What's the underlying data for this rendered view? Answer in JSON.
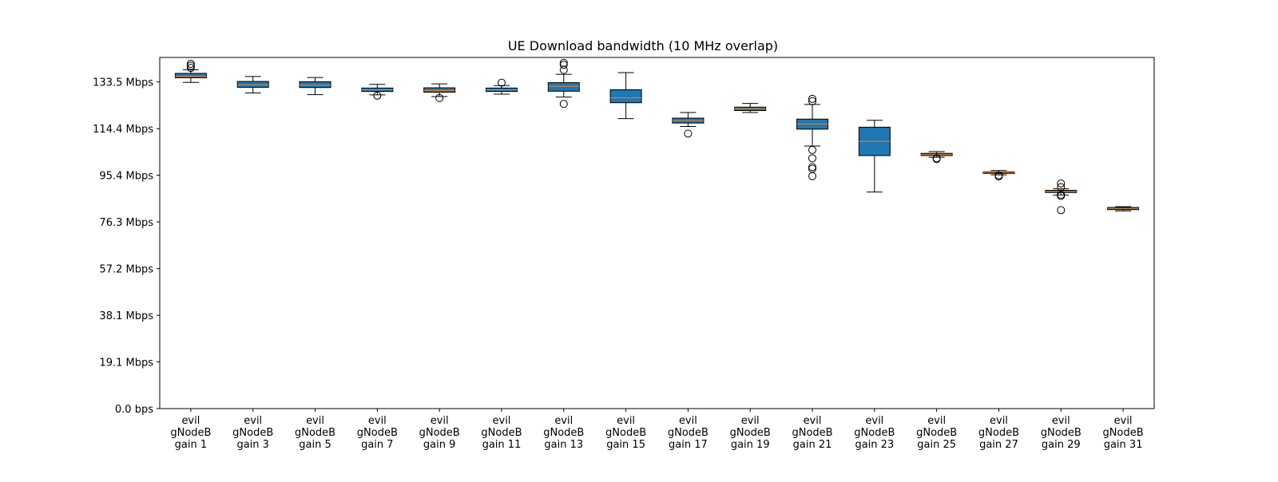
{
  "chart_data": {
    "type": "box",
    "title": "UE Download bandwidth (10 MHz overlap)",
    "xlabel": "",
    "ylabel": "",
    "ylim": [
      0,
      143.5
    ],
    "grid": false,
    "y_ticks": [
      {
        "value": 0.0,
        "label": "0.0 bps"
      },
      {
        "value": 19.1,
        "label": "19.1 Mbps"
      },
      {
        "value": 38.1,
        "label": "38.1 Mbps"
      },
      {
        "value": 57.2,
        "label": "57.2 Mbps"
      },
      {
        "value": 76.3,
        "label": "76.3 Mbps"
      },
      {
        "value": 95.4,
        "label": "95.4 Mbps"
      },
      {
        "value": 114.4,
        "label": "114.4 Mbps"
      },
      {
        "value": 133.5,
        "label": "133.5 Mbps"
      }
    ],
    "colors": {
      "box_fill": "#1f77b4",
      "median": "#ff7f0e",
      "line": "#000000"
    },
    "categories": [
      {
        "label": [
          "evil",
          "gNodeB",
          "gain 1"
        ],
        "whislo": 133.3,
        "q1": 135.2,
        "med": 135.8,
        "q3": 137.0,
        "whishi": 138.5,
        "fliers": [
          139.2,
          140.1,
          140.9
        ]
      },
      {
        "label": [
          "evil",
          "gNodeB",
          "gain 3"
        ],
        "whislo": 129.0,
        "q1": 131.3,
        "med": 132.3,
        "q3": 133.7,
        "whishi": 135.7,
        "fliers": []
      },
      {
        "label": [
          "evil",
          "gNodeB",
          "gain 5"
        ],
        "whislo": 128.3,
        "q1": 131.2,
        "med": 132.2,
        "q3": 133.6,
        "whishi": 135.3,
        "fliers": []
      },
      {
        "label": [
          "evil",
          "gNodeB",
          "gain 7"
        ],
        "whislo": 128.2,
        "q1": 129.6,
        "med": 130.3,
        "q3": 131.0,
        "whishi": 132.5,
        "fliers": [
          127.9
        ]
      },
      {
        "label": [
          "evil",
          "gNodeB",
          "gain 9"
        ],
        "whislo": 127.5,
        "q1": 129.3,
        "med": 130.0,
        "q3": 131.1,
        "whishi": 132.7,
        "fliers": [
          126.9
        ]
      },
      {
        "label": [
          "evil",
          "gNodeB",
          "gain 11"
        ],
        "whislo": 128.5,
        "q1": 129.6,
        "med": 130.3,
        "q3": 131.0,
        "whishi": 132.0,
        "fliers": [
          133.2
        ]
      },
      {
        "label": [
          "evil",
          "gNodeB",
          "gain 13"
        ],
        "whislo": 127.3,
        "q1": 129.7,
        "med": 131.7,
        "q3": 133.2,
        "whishi": 136.6,
        "fliers": [
          124.5,
          138.4,
          140.5,
          141.3
        ]
      },
      {
        "label": [
          "evil",
          "gNodeB",
          "gain 15"
        ],
        "whislo": 118.5,
        "q1": 125.0,
        "med": 127.0,
        "q3": 130.3,
        "whishi": 137.3,
        "fliers": []
      },
      {
        "label": [
          "evil",
          "gNodeB",
          "gain 17"
        ],
        "whislo": 115.3,
        "q1": 116.7,
        "med": 117.7,
        "q3": 118.7,
        "whishi": 121.0,
        "fliers": [
          112.4
        ]
      },
      {
        "label": [
          "evil",
          "gNodeB",
          "gain 19"
        ],
        "whislo": 121.0,
        "q1": 121.8,
        "med": 122.6,
        "q3": 123.2,
        "whishi": 124.7,
        "fliers": []
      },
      {
        "label": [
          "evil",
          "gNodeB",
          "gain 21"
        ],
        "whislo": 107.3,
        "q1": 114.2,
        "med": 116.3,
        "q3": 118.3,
        "whishi": 124.3,
        "fliers": [
          105.7,
          102.3,
          98.7,
          98.0,
          95.0,
          125.6,
          126.6
        ]
      },
      {
        "label": [
          "evil",
          "gNodeB",
          "gain 23"
        ],
        "whislo": 88.5,
        "q1": 103.4,
        "med": 109.2,
        "q3": 115.0,
        "whishi": 117.8,
        "fliers": []
      },
      {
        "label": [
          "evil",
          "gNodeB",
          "gain 25"
        ],
        "whislo": 102.7,
        "q1": 103.4,
        "med": 103.8,
        "q3": 104.3,
        "whishi": 105.0,
        "fliers": [
          102.3,
          102.0
        ]
      },
      {
        "label": [
          "evil",
          "gNodeB",
          "gain 27"
        ],
        "whislo": 95.5,
        "q1": 96.1,
        "med": 96.4,
        "q3": 96.7,
        "whishi": 97.3,
        "fliers": [
          95.3,
          94.9
        ]
      },
      {
        "label": [
          "evil",
          "gNodeB",
          "gain 29"
        ],
        "whislo": 87.3,
        "q1": 88.3,
        "med": 88.8,
        "q3": 89.2,
        "whishi": 89.8,
        "fliers": [
          92.0,
          90.5,
          87.4,
          86.9,
          81.1
        ]
      },
      {
        "label": [
          "evil",
          "gNodeB",
          "gain 31"
        ],
        "whislo": 80.8,
        "q1": 81.3,
        "med": 81.8,
        "q3": 82.2,
        "whishi": 82.5,
        "fliers": []
      }
    ]
  }
}
